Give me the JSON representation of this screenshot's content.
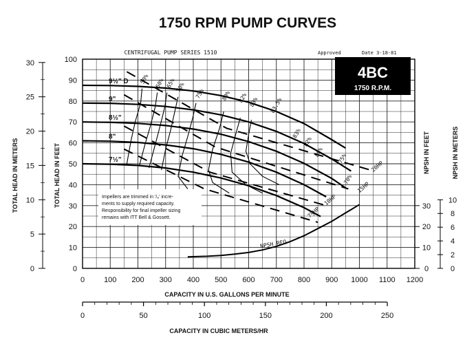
{
  "chart_data": {
    "type": "line",
    "title": "1750 RPM PUMP CURVES",
    "subtitle": "CENTRIFUGAL PUMP SERIES 1510",
    "approval": "Approved",
    "date": "Date 3-18-81",
    "model": "4BC",
    "speed": "1750 R.P.M.",
    "note": [
      "Impellers are trimmed in '/₈' incre-",
      "ments to supply required capacity.",
      "Responsibility for final impeller sizing",
      "remains with ITT Bell & Gossett."
    ],
    "xlabel": "CAPACITY IN U.S. GALLONS PER MINUTE",
    "x2label": "CAPACITY IN CUBIC METERS/HR",
    "ylabel_feet": "TOTAL HEAD IN FEET",
    "ylabel_meters": "TOTAL HEAD IN METERS",
    "y2label_feet": "NPSH IN FEET",
    "y2label_meters": "NPSH IN METERS",
    "xlim": [
      0,
      1200
    ],
    "x_ticks": [
      "0",
      "100",
      "200",
      "300",
      "400",
      "500",
      "600",
      "700",
      "800",
      "900",
      "1000",
      "1100",
      "1200"
    ],
    "ylim_feet": [
      0,
      100
    ],
    "y_ticks_feet": [
      "0",
      "10",
      "20",
      "30",
      "40",
      "50",
      "60",
      "70",
      "80",
      "90",
      "100"
    ],
    "y_ticks_meters": [
      "0",
      "5",
      "10",
      "15",
      "20",
      "25",
      "30"
    ],
    "npsh_feet_ticks": [
      "0",
      "10",
      "20",
      "30"
    ],
    "npsh_meter_ticks": [
      "0",
      "2",
      "4",
      "6",
      "8",
      "10"
    ],
    "x2_ticks": [
      "0",
      "50",
      "100",
      "150",
      "200",
      "250"
    ],
    "grid": true,
    "series": [
      {
        "name": "9½\" D",
        "x": [
          0,
          100,
          200,
          300,
          400,
          500,
          600,
          700,
          800,
          900,
          950
        ],
        "y": [
          87.5,
          87.4,
          87,
          86.2,
          84.8,
          82.6,
          79.4,
          75,
          69.2,
          61.5,
          57.5
        ]
      },
      {
        "name": "9\"",
        "x": [
          0,
          100,
          200,
          300,
          400,
          500,
          600,
          700,
          800,
          900,
          970
        ],
        "y": [
          79,
          78.9,
          78.4,
          77.4,
          75.8,
          73.4,
          70,
          65.5,
          59.7,
          52.3,
          46.5
        ]
      },
      {
        "name": "8½\"",
        "x": [
          0,
          100,
          200,
          300,
          400,
          500,
          600,
          700,
          800,
          900,
          950
        ],
        "y": [
          70,
          69.8,
          69.3,
          68.3,
          66.6,
          64.1,
          60.6,
          56,
          50.2,
          43,
          38.5
        ]
      },
      {
        "name": "8\"",
        "x": [
          0,
          100,
          200,
          300,
          400,
          500,
          600,
          700,
          800,
          880
        ],
        "y": [
          61,
          60.8,
          60.2,
          59,
          57.2,
          54.5,
          50.8,
          46,
          40,
          34.2
        ]
      },
      {
        "name": "7½\"",
        "x": [
          0,
          100,
          200,
          300,
          400,
          500,
          600,
          700,
          800,
          860
        ],
        "y": [
          50,
          49.8,
          49.2,
          48,
          46,
          43.2,
          39.5,
          34.8,
          29,
          24.8
        ]
      },
      {
        "name": "NPSH REQ",
        "x": [
          380,
          450,
          500,
          550,
          600,
          650,
          700,
          750,
          800,
          850,
          900,
          950,
          1000
        ],
        "y": [
          5.5,
          5.8,
          6.2,
          6.8,
          7.6,
          8.8,
          10.5,
          12.8,
          15.6,
          19,
          22.5,
          26.5,
          30.5
        ]
      }
    ],
    "efficiency_labels": [
      "50%",
      "60%",
      "65%",
      "70%",
      "75%",
      "80%",
      "82%",
      "83%",
      "83.5%",
      "83%",
      "82%",
      "80%",
      "75%",
      "70%"
    ],
    "hp_labels": [
      "20HP",
      "15HP",
      "10HP",
      "7½HP"
    ],
    "npsh_label": "NPSH REQ"
  }
}
